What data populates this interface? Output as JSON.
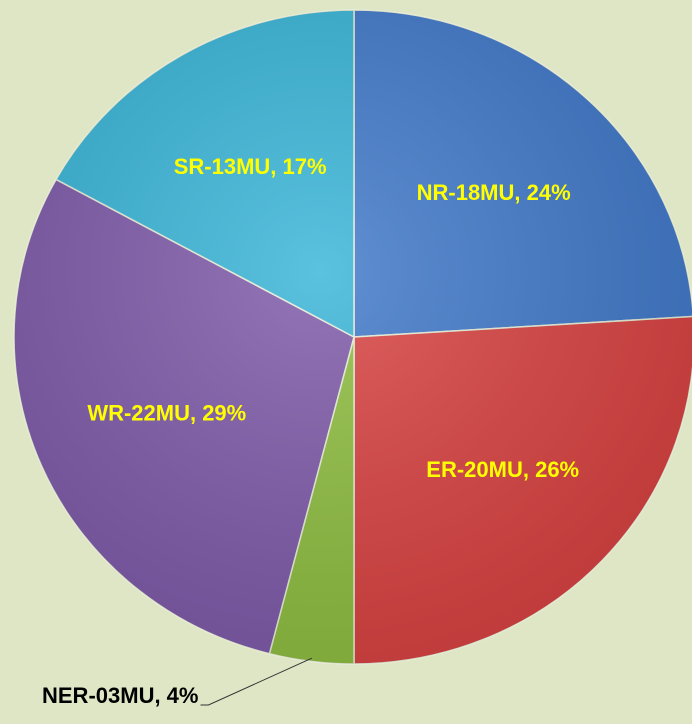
{
  "chart_data": {
    "type": "pie",
    "categories": [
      "NR",
      "ER",
      "NER",
      "WR",
      "SR"
    ],
    "values": [
      24,
      26,
      4,
      29,
      17
    ],
    "value_labels": [
      "NR-18MU, 24%",
      "ER-20MU, 26%",
      "NER-03MU, 4%",
      "WR-22MU, 29%",
      "SR-13MU, 17%"
    ],
    "colors": [
      "#3e77c9",
      "#d8403f",
      "#8dbd3e",
      "#7d58a8",
      "#36b4d7"
    ]
  }
}
